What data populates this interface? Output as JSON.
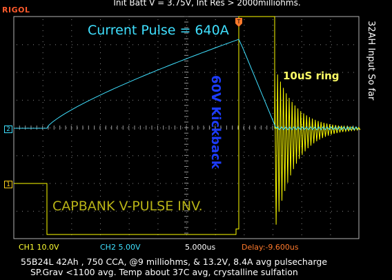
{
  "scope": {
    "brand": "RIGOL",
    "title": "Init Batt V = 3.75V, Int Res > 2000milliohms.",
    "side_note": "32AH Input So far",
    "annotations": {
      "current_pulse": "Current Pulse = 640A",
      "ring": "10uS ring",
      "kickback": "60V Kickback",
      "capbank": "CAPBANK V-PULSE INV."
    },
    "channel_markers": {
      "ch1": "1",
      "ch2": "2"
    },
    "trigger_marker": "T"
  },
  "status_bar": {
    "ch1_scale": "CH1  10.0V",
    "ch2_scale": "CH2  5.00V",
    "timebase": "5.000us",
    "delay": "Delay:-9.600us"
  },
  "footer": {
    "line1": "55B24L 42Ah , 750 CCA, @9 milliohms, & 13.2V, 8.4A avg pulsecharge",
    "line2": "SP.Grav <1100 avg. Temp about 37C avg, crystalline sulfation"
  },
  "colors": {
    "ch1": "#ffff00",
    "ch2": "#3fe0ff",
    "grid": "#9a9a9a",
    "brand": "#ff5a2c",
    "kickback_text": "#1d3cff",
    "capbank_text": "#b9b416",
    "delay_text": "#ff7a2c"
  }
}
